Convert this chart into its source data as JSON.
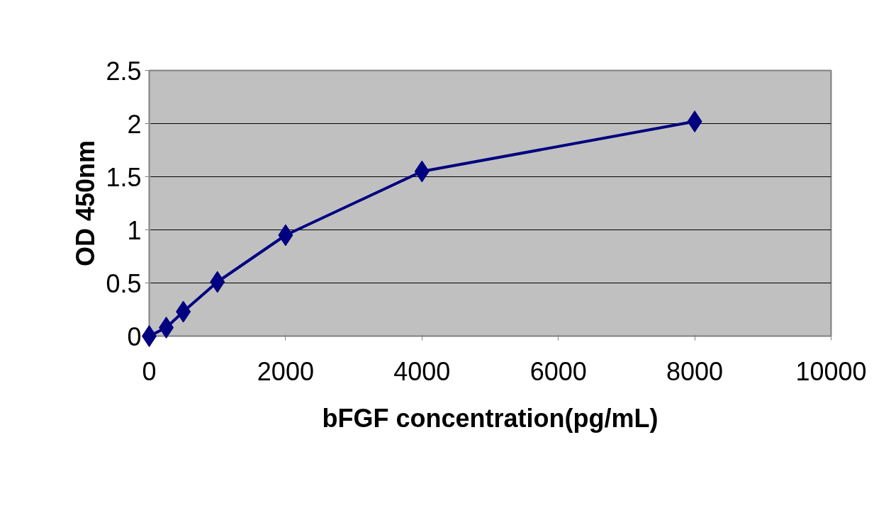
{
  "chart_data": {
    "type": "line",
    "xlabel": "bFGF concentration(pg/mL)",
    "ylabel": "OD 450nm",
    "x": [
      0,
      250,
      500,
      1000,
      2000,
      4000,
      8000
    ],
    "series": [
      {
        "color": "#000080",
        "values": [
          0,
          0.08,
          0.23,
          0.51,
          0.95,
          1.55,
          2.02
        ]
      }
    ],
    "xlim": [
      0,
      10000
    ],
    "xticks": [
      0,
      2000,
      4000,
      6000,
      8000,
      10000
    ],
    "ylim": [
      0,
      2.5
    ],
    "yticks": [
      0,
      0.5,
      1,
      1.5,
      2,
      2.5
    ],
    "grid": "y",
    "marker": "diamond",
    "line_style": "solid"
  }
}
